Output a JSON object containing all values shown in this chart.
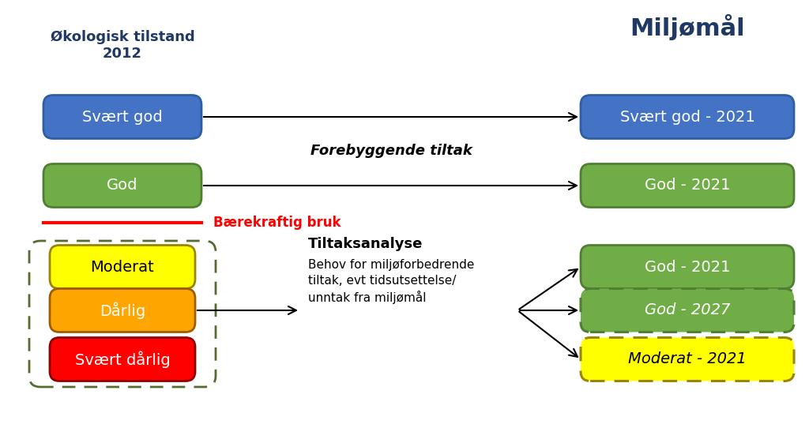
{
  "background_color": "#ffffff",
  "title_left": "Økologisk tilstand\n2012",
  "title_right": "Miljømål",
  "title_left_color": "#1F3864",
  "title_right_color": "#1F3864",
  "left_boxes": [
    {
      "label": "Svært god",
      "facecolor": "#4472C4",
      "edgecolor": "#2E5FA3",
      "textcolor": "#ffffff"
    },
    {
      "label": "God",
      "facecolor": "#70AD47",
      "edgecolor": "#507E32",
      "textcolor": "#ffffff"
    }
  ],
  "lower_left_boxes": [
    {
      "label": "Moderat",
      "facecolor": "#FFFF00",
      "edgecolor": "#9C8400",
      "textcolor": "#000000"
    },
    {
      "label": "Dårlig",
      "facecolor": "#FFA500",
      "edgecolor": "#9C5E00",
      "textcolor": "#ffffff"
    },
    {
      "label": "Svært dårlig",
      "facecolor": "#FF0000",
      "edgecolor": "#8B0000",
      "textcolor": "#ffffff"
    }
  ],
  "right_boxes_top": [
    {
      "label": "Svært god - 2021",
      "facecolor": "#4472C4",
      "edgecolor": "#2E5FA3",
      "textcolor": "#ffffff",
      "solid": true,
      "italic": false
    },
    {
      "label": "God - 2021",
      "facecolor": "#70AD47",
      "edgecolor": "#507E32",
      "textcolor": "#ffffff",
      "solid": true,
      "italic": false
    }
  ],
  "right_boxes_bottom": [
    {
      "label": "God - 2021",
      "facecolor": "#70AD47",
      "edgecolor": "#507E32",
      "textcolor": "#ffffff",
      "solid": true,
      "italic": false
    },
    {
      "label": "God - 2027",
      "facecolor": "#70AD47",
      "edgecolor": "#507E32",
      "textcolor": "#ffffff",
      "solid": false,
      "italic": true
    },
    {
      "label": "Moderat - 2021",
      "facecolor": "#FFFF00",
      "edgecolor": "#9C8400",
      "textcolor": "#000000",
      "solid": false,
      "italic": true
    }
  ],
  "red_line_label": "Bærekraftig bruk",
  "forebyggende_label": "Forebyggende tiltak",
  "tiltaksanalyse_title": "Tiltaksanalyse",
  "tiltaksanalyse_body": "Behov for miljøforbedrende\ntiltak, evt tidsutsettelse/\nunntak fra miljømål",
  "dashed_border_color": "#556B2F"
}
